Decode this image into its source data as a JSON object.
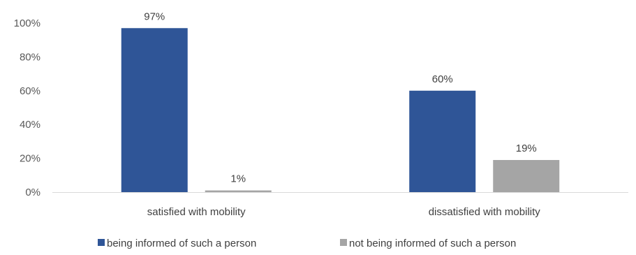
{
  "chart_data": {
    "type": "bar",
    "categories": [
      "satisfied with mobility",
      "dissatisfied with mobility"
    ],
    "series": [
      {
        "name": "being informed of such a person",
        "values": [
          97,
          60
        ],
        "labels": [
          "97%",
          "60%"
        ],
        "color": "#2F5597"
      },
      {
        "name": "not being informed of such a person",
        "values": [
          1,
          19
        ],
        "labels": [
          "1%",
          "19%"
        ],
        "color": "#A5A5A5"
      }
    ],
    "yticks": [
      "0%",
      "20%",
      "40%",
      "60%",
      "80%",
      "100%"
    ],
    "ylim": [
      0,
      100
    ],
    "grid": false,
    "legend": "bottom",
    "axis_color": "#D9D9D9"
  }
}
